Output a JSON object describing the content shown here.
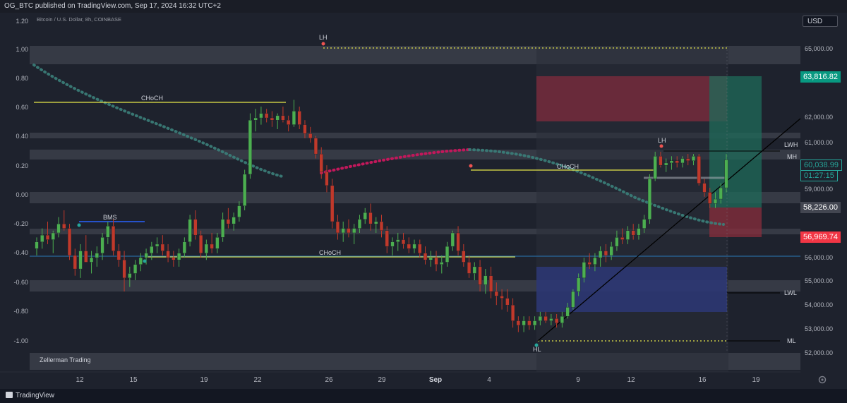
{
  "header": {
    "published": "OG_BTC published on TradingView.com, Sep 17, 2024 16:32 UTC+2"
  },
  "chart": {
    "symbol": "Bitcoin / U.S. Dollar, 8h, COINBASE",
    "currency_button": "USD",
    "watermark": "Zellerman Trading",
    "left_axis": [
      "1.20",
      "1.00",
      "0.80",
      "0.60",
      "0.40",
      "0.20",
      "0.00",
      "-0.20",
      "-0.40",
      "-0.60",
      "-0.80",
      "-1.00"
    ],
    "right_axis": [
      "65,000.00",
      "62,000.00",
      "61,000.00",
      "59,000.00",
      "56,000.00",
      "55,000.00",
      "54,000.00",
      "53,000.00",
      "52,000.00"
    ],
    "x_axis": [
      "12",
      "15",
      "19",
      "22",
      "26",
      "29",
      "Sep",
      "4",
      "9",
      "12",
      "16",
      "19"
    ],
    "price_badges": {
      "top_green": "63,816.82",
      "current_price": "60,038.99",
      "countdown": "01:27:15",
      "mid_gray": "58,226.00",
      "red": "56,969.74"
    },
    "annotations": {
      "choch": "CHoCH",
      "bms": "BMS",
      "lh": "LH",
      "hl": "HL",
      "lwh": "LWH",
      "mh": "MH",
      "lwl": "LWL",
      "ml": "ML"
    },
    "colors": {
      "up": "#4caf50",
      "down": "#c0392b",
      "yellow": "#e8e84a",
      "blue": "#2962ff"
    }
  },
  "chart_data": {
    "type": "candlestick",
    "title": "Bitcoin / U.S. Dollar, 8h, COINBASE",
    "candles": [
      [
        56100,
        56600,
        55800,
        56400
      ],
      [
        56400,
        57000,
        56100,
        56700
      ],
      [
        56700,
        57300,
        56300,
        56500
      ],
      [
        56500,
        56900,
        55900,
        56800
      ],
      [
        56800,
        57500,
        56600,
        57200
      ],
      [
        57200,
        57800,
        56900,
        57000
      ],
      [
        57000,
        57200,
        55600,
        55800
      ],
      [
        55800,
        56100,
        54900,
        55200
      ],
      [
        55200,
        56300,
        54800,
        56000
      ],
      [
        56000,
        56700,
        55500,
        55500
      ],
      [
        55500,
        56000,
        55000,
        55700
      ],
      [
        55700,
        56200,
        55300,
        55900
      ],
      [
        55900,
        56800,
        55600,
        56600
      ],
      [
        56600,
        57300,
        56300,
        57100
      ],
      [
        57100,
        57400,
        55800,
        56000
      ],
      [
        56000,
        56300,
        55300,
        55600
      ],
      [
        55600,
        56000,
        54200,
        54800
      ],
      [
        54800,
        55300,
        54400,
        55000
      ],
      [
        55000,
        55600,
        54700,
        55400
      ],
      [
        55400,
        55900,
        55100,
        55700
      ],
      [
        55700,
        56100,
        55400,
        55900
      ],
      [
        55900,
        56400,
        55600,
        56200
      ],
      [
        56200,
        56600,
        55900,
        56300
      ],
      [
        56300,
        56700,
        55800,
        56000
      ],
      [
        56000,
        56300,
        55500,
        55700
      ],
      [
        55700,
        56000,
        55300,
        55600
      ],
      [
        55600,
        56100,
        55300,
        55900
      ],
      [
        55900,
        56600,
        55700,
        56400
      ],
      [
        56400,
        57600,
        56200,
        57400
      ],
      [
        57400,
        57800,
        56500,
        56700
      ],
      [
        56700,
        56900,
        55700,
        55900
      ],
      [
        55900,
        56500,
        55600,
        56300
      ],
      [
        56300,
        56800,
        55900,
        56100
      ],
      [
        56100,
        56800,
        55900,
        56600
      ],
      [
        56600,
        57700,
        56400,
        57400
      ],
      [
        57400,
        57900,
        57000,
        57200
      ],
      [
        57200,
        57700,
        56900,
        57500
      ],
      [
        57500,
        58200,
        57300,
        58000
      ],
      [
        58000,
        59600,
        57800,
        59400
      ],
      [
        59400,
        62100,
        59200,
        61800
      ],
      [
        61800,
        62300,
        61300,
        61900
      ],
      [
        61900,
        62400,
        61600,
        62100
      ],
      [
        62100,
        62300,
        61700,
        61900
      ],
      [
        61900,
        62200,
        61500,
        61800
      ],
      [
        61800,
        62100,
        61400,
        62000
      ],
      [
        62000,
        62400,
        61700,
        61800
      ],
      [
        61800,
        62000,
        61300,
        61600
      ],
      [
        61600,
        62700,
        61500,
        62200
      ],
      [
        62200,
        62400,
        61400,
        61600
      ],
      [
        61600,
        61800,
        61000,
        61200
      ],
      [
        61200,
        61500,
        60800,
        61000
      ],
      [
        61000,
        61100,
        60100,
        60300
      ],
      [
        60300,
        60600,
        59200,
        59500
      ],
      [
        59500,
        59800,
        58600,
        58900
      ],
      [
        58900,
        59200,
        57000,
        57300
      ],
      [
        57300,
        57600,
        56500,
        56800
      ],
      [
        56800,
        57300,
        56400,
        57000
      ],
      [
        57000,
        57400,
        56600,
        56800
      ],
      [
        56800,
        57200,
        56300,
        57000
      ],
      [
        57000,
        57600,
        56800,
        57400
      ],
      [
        57400,
        57900,
        57200,
        57700
      ],
      [
        57700,
        58100,
        56900,
        57200
      ],
      [
        57200,
        57500,
        56800,
        57300
      ],
      [
        57300,
        57600,
        56600,
        56900
      ],
      [
        56900,
        57100,
        55900,
        56200
      ],
      [
        56200,
        56600,
        55800,
        56400
      ],
      [
        56400,
        56800,
        56000,
        56500
      ],
      [
        56500,
        56800,
        56100,
        56300
      ],
      [
        56300,
        56600,
        55900,
        56100
      ],
      [
        56100,
        56500,
        55900,
        56300
      ],
      [
        56300,
        56500,
        55700,
        55900
      ],
      [
        55900,
        56200,
        55400,
        55600
      ],
      [
        55600,
        56000,
        55300,
        55700
      ],
      [
        55700,
        56000,
        55100,
        55400
      ],
      [
        55400,
        55800,
        55000,
        55500
      ],
      [
        55500,
        56400,
        55300,
        56200
      ],
      [
        56200,
        56900,
        56000,
        56800
      ],
      [
        56800,
        57100,
        55800,
        56000
      ],
      [
        56000,
        56300,
        55300,
        55500
      ],
      [
        55500,
        55800,
        54800,
        55000
      ],
      [
        55000,
        55500,
        54700,
        55300
      ],
      [
        55300,
        55600,
        54200,
        54500
      ],
      [
        54500,
        55200,
        54100,
        54900
      ],
      [
        54900,
        55300,
        53900,
        54200
      ],
      [
        54200,
        54600,
        53600,
        54000
      ],
      [
        54000,
        54300,
        53400,
        53900
      ],
      [
        53900,
        54300,
        53300,
        53600
      ],
      [
        53600,
        53900,
        52600,
        52900
      ],
      [
        52900,
        53100,
        52400,
        52700
      ],
      [
        52700,
        53100,
        52400,
        52900
      ],
      [
        52900,
        53100,
        52500,
        52700
      ],
      [
        52700,
        53100,
        52500,
        52900
      ],
      [
        52900,
        53300,
        52700,
        53100
      ],
      [
        53100,
        53300,
        52800,
        52900
      ],
      [
        52900,
        53200,
        52700,
        53000
      ],
      [
        53000,
        53200,
        52600,
        52800
      ],
      [
        52800,
        53300,
        52600,
        53100
      ],
      [
        53100,
        53700,
        53000,
        53500
      ],
      [
        53500,
        54300,
        53400,
        54200
      ],
      [
        54200,
        55000,
        54000,
        54800
      ],
      [
        54800,
        55700,
        54600,
        55500
      ],
      [
        55500,
        55900,
        55200,
        55400
      ],
      [
        55400,
        55900,
        55100,
        55700
      ],
      [
        55700,
        56200,
        55300,
        56000
      ],
      [
        56000,
        56300,
        55500,
        55800
      ],
      [
        55800,
        56400,
        55600,
        56200
      ],
      [
        56200,
        56900,
        56000,
        56600
      ],
      [
        56600,
        57000,
        56300,
        56500
      ],
      [
        56500,
        57100,
        56300,
        56900
      ],
      [
        56900,
        57200,
        56500,
        56700
      ],
      [
        56700,
        57200,
        56500,
        57000
      ],
      [
        57000,
        57600,
        56800,
        57400
      ],
      [
        57400,
        59400,
        57200,
        59200
      ],
      [
        59200,
        60400,
        59100,
        60200
      ],
      [
        60200,
        60400,
        59700,
        59800
      ],
      [
        59800,
        60100,
        59500,
        59900
      ],
      [
        59900,
        60200,
        59600,
        60000
      ],
      [
        60000,
        60200,
        59700,
        59900
      ],
      [
        59900,
        60200,
        59700,
        60100
      ],
      [
        60100,
        60300,
        59800,
        60000
      ],
      [
        60000,
        60300,
        59800,
        60200
      ],
      [
        60200,
        60300,
        58900,
        59000
      ],
      [
        59000,
        59200,
        58400,
        58600
      ],
      [
        58600,
        58800,
        57900,
        58100
      ],
      [
        58100,
        58600,
        57900,
        58300
      ],
      [
        58300,
        59000,
        58100,
        58800
      ],
      [
        58800,
        60300,
        58600,
        60039
      ]
    ]
  }
}
